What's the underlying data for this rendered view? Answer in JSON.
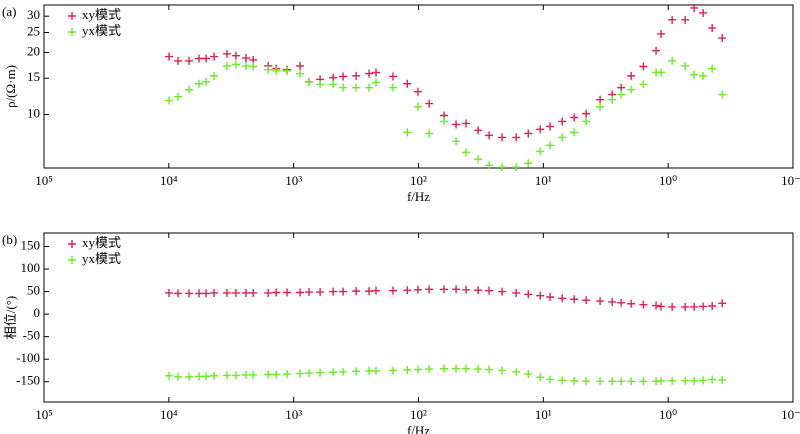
{
  "chart_data": [
    {
      "type": "scatter",
      "panel_label": "(a)",
      "ylabel": "ρ/(Ω·m)",
      "xlabel": "f/Hz",
      "xlog": true,
      "ylog": true,
      "legend": "upper left",
      "xlim": [
        100000,
        0.1
      ],
      "xticks": [
        {
          "value": 100000,
          "label": "10⁵"
        },
        {
          "value": 10000,
          "label": "10⁴"
        },
        {
          "value": 1000,
          "label": "10³"
        },
        {
          "value": 100,
          "label": "10²"
        },
        {
          "value": 10,
          "label": "10¹"
        },
        {
          "value": 1,
          "label": "10⁰"
        },
        {
          "value": 0.1,
          "label": "10⁻¹"
        }
      ],
      "ylim": [
        5.5,
        34
      ],
      "yticks": [
        10,
        15,
        20,
        25,
        30
      ],
      "x": [
        9960,
        8440,
        6890,
        5730,
        5030,
        4340,
        3420,
        2900,
        2410,
        2110,
        1600,
        1380,
        1130,
        889,
        753,
        614,
        483,
        402,
        316,
        249,
        219,
        160,
        123,
        101,
        82.2,
        62.4,
        50.0,
        41.6,
        33.3,
        27.2,
        21.4,
        16.5,
        13.2,
        10.6,
        8.83,
        7.06,
        5.66,
        4.54,
        3.51,
        2.81,
        2.38,
        1.98,
        1.58,
        1.25,
        1.14,
        0.929,
        0.731,
        0.619,
        0.525,
        0.444,
        0.369
      ],
      "series": [
        {
          "name": "xy模式",
          "color": "#e0204a",
          "values": [
            19.1,
            18.2,
            18.2,
            18.7,
            18.7,
            19.1,
            19.7,
            19.3,
            18.8,
            18.4,
            17.2,
            16.7,
            16.5,
            17.2,
            14.4,
            14.8,
            15.1,
            15.3,
            15.4,
            15.8,
            16.0,
            15.3,
            14.1,
            12.9,
            11.3,
            9.89,
            8.95,
            9.05,
            8.37,
            7.92,
            7.74,
            7.74,
            8.09,
            8.47,
            8.75,
            9.25,
            9.67,
            10.1,
            11.8,
            12.5,
            13.5,
            15.4,
            17.1,
            20.4,
            24.6,
            28.8,
            28.8,
            32.9,
            31.1,
            26.3,
            23.5
          ]
        },
        {
          "name": "yx模式",
          "color": "#66ee22",
          "values": [
            11.7,
            12.2,
            13.2,
            14.1,
            14.4,
            15.4,
            17.2,
            17.5,
            17.2,
            17.1,
            16.5,
            16.3,
            16.3,
            15.8,
            14.4,
            14.0,
            14.0,
            13.5,
            13.5,
            13.5,
            14.3,
            13.5,
            8.19,
            10.9,
            8.09,
            9.25,
            7.41,
            6.55,
            6.07,
            5.67,
            5.55,
            5.55,
            5.8,
            6.62,
            7.09,
            7.74,
            8.19,
            9.25,
            10.9,
            11.8,
            12.5,
            13.2,
            14.0,
            16.0,
            16.0,
            18.2,
            17.2,
            15.6,
            15.4,
            16.7,
            12.5
          ]
        }
      ]
    },
    {
      "type": "scatter",
      "panel_label": "(b)",
      "ylabel": "相位/(°)",
      "xlabel": "f/Hz",
      "xlog": true,
      "ylog": false,
      "legend": "upper left",
      "xlim": [
        100000,
        0.1
      ],
      "xticks": [
        {
          "value": 100000,
          "label": "10⁵"
        },
        {
          "value": 10000,
          "label": "10⁴"
        },
        {
          "value": 1000,
          "label": "10³"
        },
        {
          "value": 100,
          "label": "10²"
        },
        {
          "value": 10,
          "label": "10¹"
        },
        {
          "value": 1,
          "label": "10⁰"
        },
        {
          "value": 0.1,
          "label": "10⁻¹"
        }
      ],
      "ylim": [
        -195,
        180
      ],
      "yticks": [
        150,
        100,
        50,
        0,
        -50,
        -100,
        -150
      ],
      "x": [
        9960,
        8440,
        6890,
        5730,
        5030,
        4340,
        3420,
        2900,
        2410,
        2110,
        1600,
        1380,
        1130,
        889,
        753,
        614,
        483,
        402,
        316,
        249,
        219,
        160,
        123,
        101,
        82.2,
        62.4,
        50.0,
        41.6,
        33.3,
        27.2,
        21.4,
        16.5,
        13.2,
        10.6,
        8.83,
        7.06,
        5.66,
        4.54,
        3.51,
        2.81,
        2.38,
        1.98,
        1.58,
        1.25,
        1.14,
        0.929,
        0.731,
        0.619,
        0.525,
        0.444,
        0.369
      ],
      "series": [
        {
          "name": "xy模式",
          "color": "#e0204a",
          "values": [
            47,
            46,
            46,
            46,
            46,
            47,
            47,
            47,
            47,
            47,
            47,
            48,
            48,
            48,
            49,
            49,
            50,
            50,
            51,
            51,
            52,
            52,
            53,
            54,
            55,
            55,
            55,
            54,
            53,
            52,
            50,
            47,
            44,
            41,
            38,
            35,
            33,
            31,
            29,
            27,
            25,
            23,
            21,
            19,
            17,
            16,
            16,
            16,
            17,
            18,
            24
          ]
        },
        {
          "name": "yx模式",
          "color": "#66ee22",
          "values": [
            -137,
            -139,
            -139,
            -138,
            -138,
            -137,
            -136,
            -136,
            -135,
            -135,
            -134,
            -134,
            -133,
            -132,
            -131,
            -130,
            -129,
            -128,
            -127,
            -126,
            -126,
            -125,
            -124,
            -123,
            -122,
            -121,
            -121,
            -121,
            -122,
            -123,
            -125,
            -128,
            -133,
            -140,
            -145,
            -147,
            -148,
            -149,
            -149,
            -149,
            -149,
            -149,
            -149,
            -149,
            -148,
            -148,
            -148,
            -148,
            -147,
            -145,
            -146
          ]
        }
      ]
    }
  ]
}
